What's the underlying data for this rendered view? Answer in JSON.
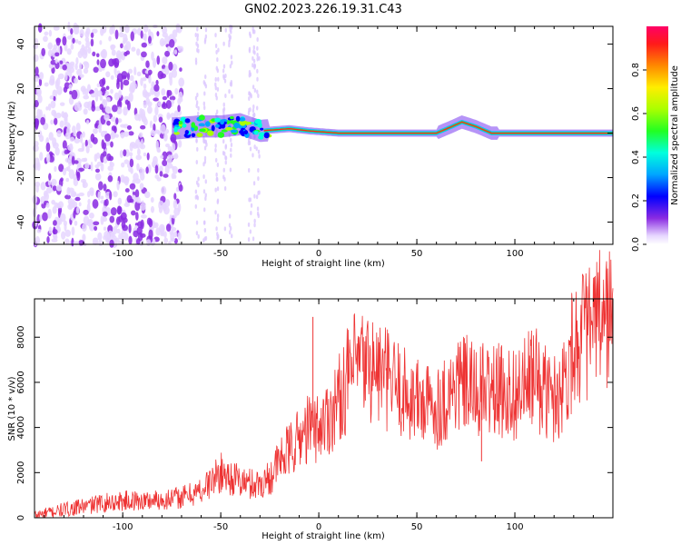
{
  "title": "GN02.2023.226.19.31.C43",
  "chart_data": [
    {
      "type": "heatmap",
      "xlabel": "Height of straight line (km)",
      "ylabel": "Frequency (Hz)",
      "xlim": [
        -145,
        150
      ],
      "ylim": [
        -50,
        48
      ],
      "xticks": [
        -100,
        -50,
        0,
        50,
        100
      ],
      "yticks": [
        -40,
        -20,
        0,
        20,
        40
      ],
      "colorbar": {
        "label": "Normalized spectral amplitude",
        "range": [
          0,
          1
        ],
        "ticks": [
          "0.0",
          "0.2",
          "0.4",
          "0.6",
          "0.8"
        ]
      },
      "frequency_ridge": {
        "x": [
          -75,
          -60,
          -50,
          -40,
          -30,
          -15,
          -5,
          10,
          60,
          68,
          73,
          80,
          88,
          100,
          150
        ],
        "y": [
          2,
          3,
          3,
          4,
          1,
          2,
          1,
          0,
          0,
          3,
          5,
          3,
          0,
          0,
          0
        ]
      },
      "noise_region": {
        "x_from": -145,
        "x_to": -70
      },
      "grid": false
    },
    {
      "type": "line",
      "xlabel": "Height of straight line (km)",
      "ylabel": "SNR (10 * v/v)",
      "xlim": [
        -145,
        150
      ],
      "ylim": [
        0,
        9700
      ],
      "xticks": [
        -100,
        -50,
        0,
        50,
        100
      ],
      "yticks": [
        0,
        2000,
        4000,
        6000,
        8000
      ],
      "series": [
        {
          "color": "#ee3333",
          "x": [
            -145,
            -130,
            -120,
            -110,
            -100,
            -90,
            -80,
            -70,
            -60,
            -55,
            -50,
            -45,
            -40,
            -35,
            -30,
            -25,
            -20,
            -15,
            -10,
            -5,
            0,
            5,
            10,
            15,
            20,
            25,
            30,
            35,
            40,
            45,
            50,
            55,
            60,
            65,
            70,
            75,
            80,
            85,
            90,
            95,
            100,
            105,
            110,
            115,
            120,
            125,
            130,
            135,
            140,
            145,
            150
          ],
          "y": [
            100,
            350,
            500,
            650,
            750,
            750,
            800,
            900,
            1200,
            1600,
            2000,
            1800,
            1600,
            1500,
            1500,
            1800,
            2500,
            3000,
            3500,
            4000,
            4000,
            4500,
            5200,
            6200,
            6800,
            6700,
            6500,
            6100,
            5800,
            5400,
            5200,
            5000,
            4900,
            5300,
            5900,
            5900,
            5500,
            5700,
            5600,
            5600,
            5500,
            5800,
            6300,
            5600,
            5300,
            6000,
            7800,
            8100,
            8400,
            8800,
            9000
          ]
        }
      ],
      "spikes": [
        {
          "x": -3,
          "y": 8900
        },
        {
          "x": 83,
          "y": 2500
        }
      ],
      "grid": false
    }
  ]
}
